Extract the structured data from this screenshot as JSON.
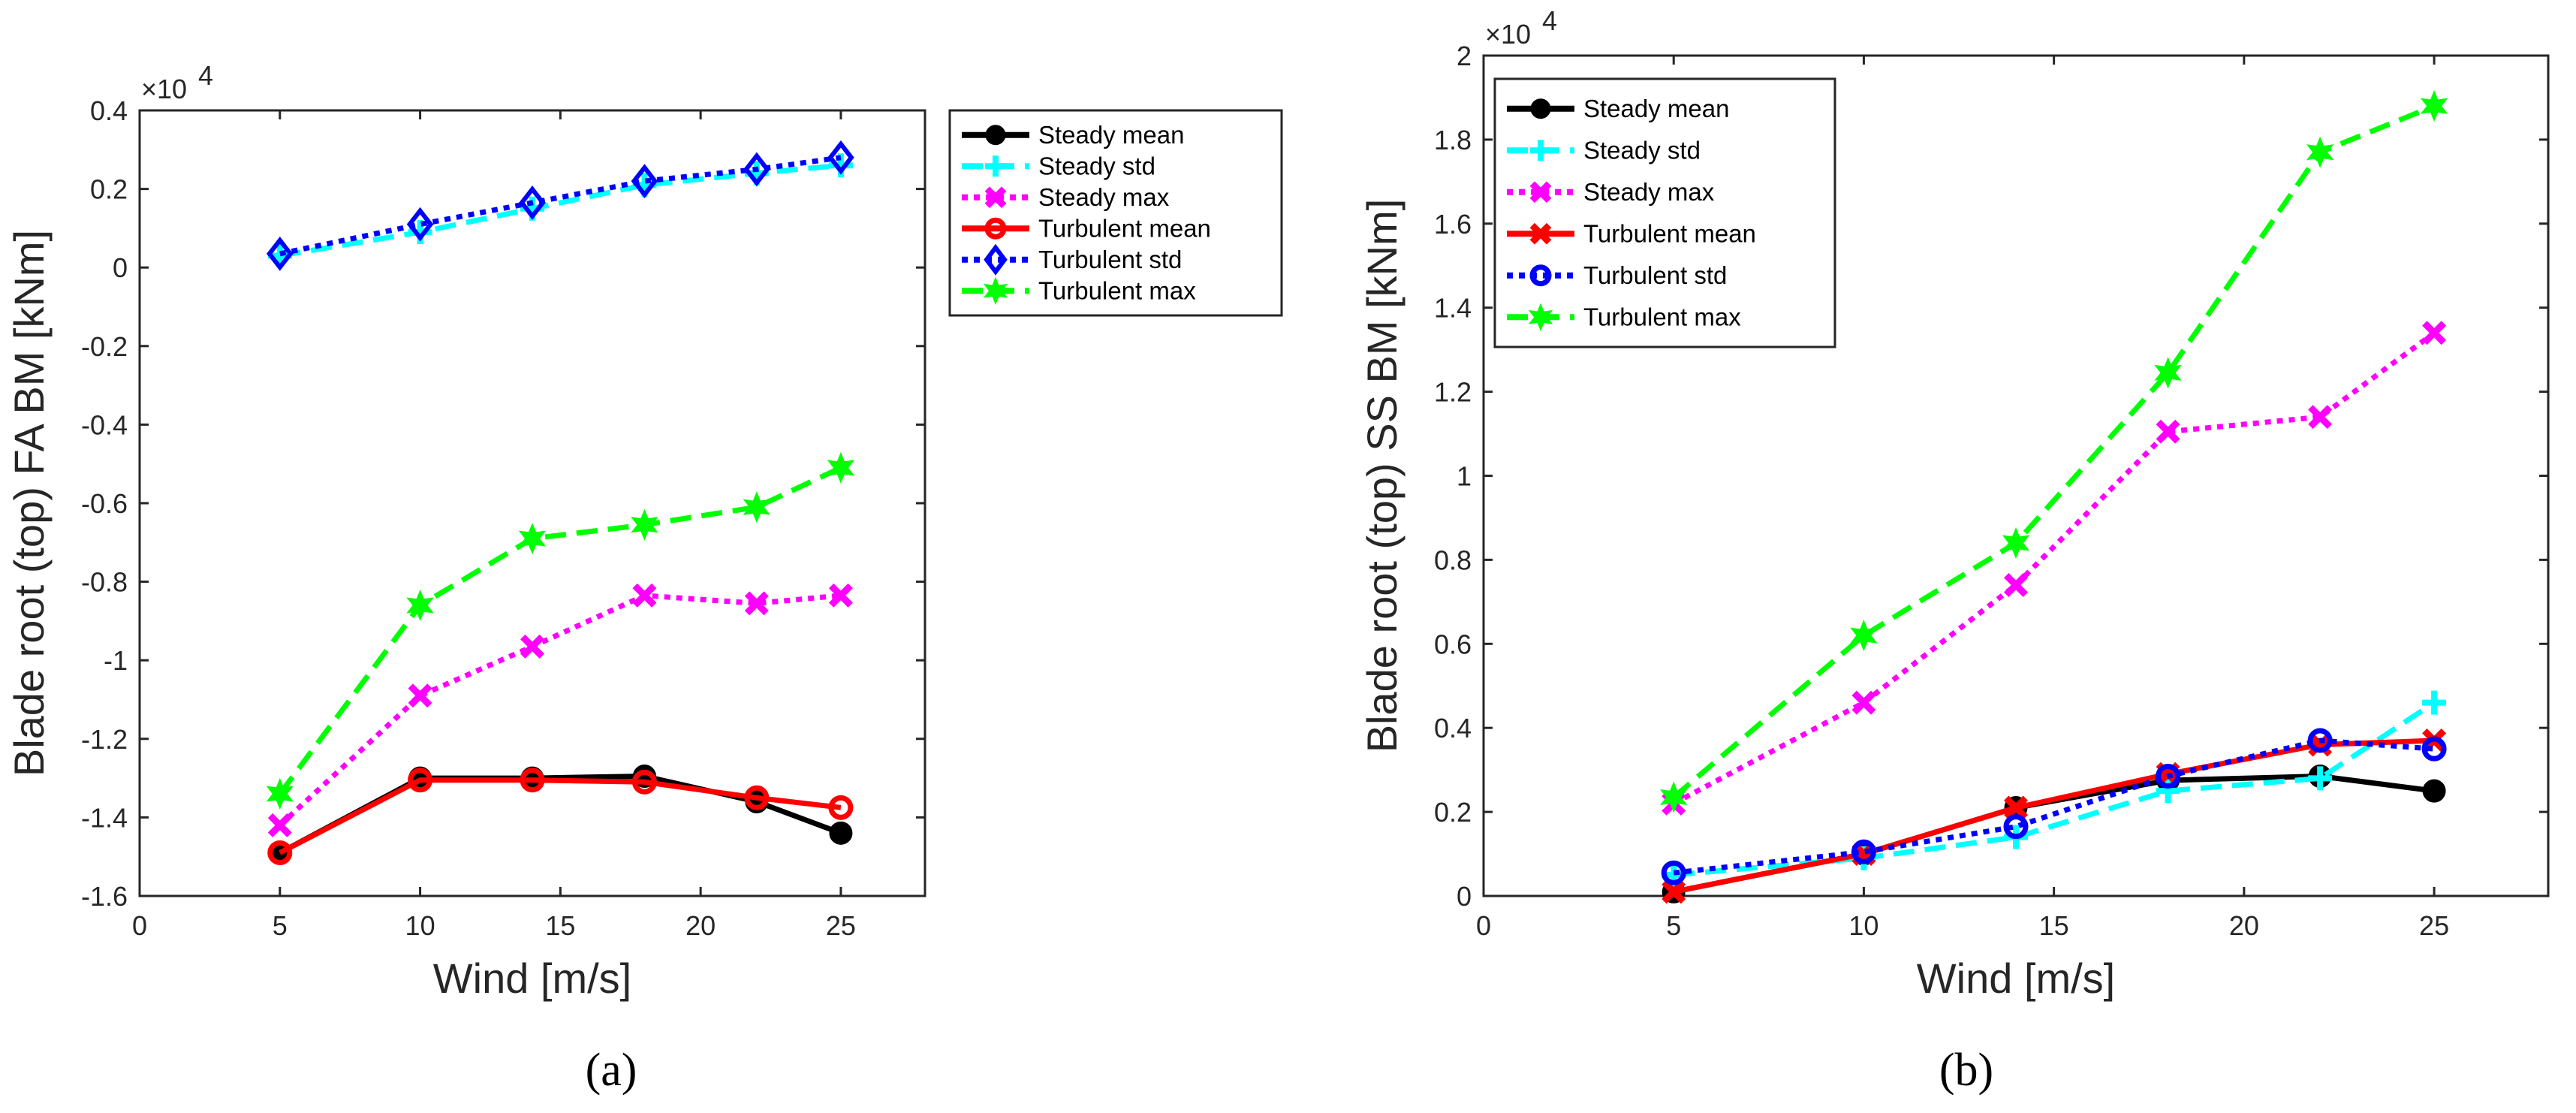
{
  "chart_data": [
    {
      "type": "line",
      "panel_label": "(a)",
      "xlabel": "Wind [m/s]",
      "ylabel": "Blade root (top) FA BM [kNm]",
      "y_multiplier": "×10^4",
      "y_multiplier_base": "×10",
      "y_multiplier_exp": "4",
      "xlim": [
        0,
        28
      ],
      "ylim": [
        -1.6,
        0.4
      ],
      "xticks": [
        "0",
        "5",
        "10",
        "15",
        "20",
        "25"
      ],
      "xtick_values": [
        0,
        5,
        10,
        15,
        20,
        25
      ],
      "yticks": [
        "-1.6",
        "-1.4",
        "-1.2",
        "-1",
        "-0.8",
        "-0.6",
        "-0.4",
        "-0.2",
        "0",
        "0.2",
        "0.4"
      ],
      "ytick_values": [
        -1.6,
        -1.4,
        -1.2,
        -1,
        -0.8,
        -0.6,
        -0.4,
        -0.2,
        0,
        0.2,
        0.4
      ],
      "legend_position": "outside-right-top",
      "grid": false,
      "x": [
        5,
        10,
        14,
        18,
        22,
        25
      ],
      "series": [
        {
          "name": "Steady mean",
          "color": "#000000",
          "style": "solid",
          "marker": "filled-circle",
          "values": [
            -1.49,
            -1.3,
            -1.3,
            -1.295,
            -1.36,
            -1.44
          ]
        },
        {
          "name": "Steady std",
          "color": "#00ffff",
          "style": "dashed",
          "marker": "plus",
          "values": [
            0.03,
            0.09,
            0.15,
            0.21,
            0.24,
            0.26
          ]
        },
        {
          "name": "Steady max",
          "color": "#ff00ff",
          "style": "dotted",
          "marker": "x",
          "values": [
            -1.42,
            -1.09,
            -0.965,
            -0.835,
            -0.855,
            -0.835
          ]
        },
        {
          "name": "Turbulent mean",
          "color": "#ff0000",
          "style": "solid",
          "marker": "circle",
          "values": [
            -1.49,
            -1.305,
            -1.305,
            -1.31,
            -1.35,
            -1.375
          ]
        },
        {
          "name": "Turbulent std",
          "color": "#0000ff",
          "style": "dotted",
          "marker": "diamond",
          "values": [
            0.035,
            0.11,
            0.165,
            0.22,
            0.25,
            0.28
          ]
        },
        {
          "name": "Turbulent max",
          "color": "#00ff00",
          "style": "dashed",
          "marker": "star",
          "values": [
            -1.34,
            -0.86,
            -0.69,
            -0.655,
            -0.61,
            -0.51
          ]
        }
      ]
    },
    {
      "type": "line",
      "panel_label": "(b)",
      "xlabel": "Wind [m/s]",
      "ylabel": "Blade root (top) SS BM [kNm]",
      "y_multiplier": "×10^4",
      "y_multiplier_base": "×10",
      "y_multiplier_exp": "4",
      "xlim": [
        0,
        28
      ],
      "ylim": [
        0,
        2
      ],
      "xticks": [
        "0",
        "5",
        "10",
        "15",
        "20",
        "25"
      ],
      "xtick_values": [
        0,
        5,
        10,
        15,
        20,
        25
      ],
      "yticks": [
        "0",
        "0.2",
        "0.4",
        "0.6",
        "0.8",
        "1",
        "1.2",
        "1.4",
        "1.6",
        "1.8",
        "2"
      ],
      "ytick_values": [
        0,
        0.2,
        0.4,
        0.6,
        0.8,
        1,
        1.2,
        1.4,
        1.6,
        1.8,
        2
      ],
      "legend_position": "top-left",
      "grid": false,
      "x": [
        5,
        10,
        14,
        18,
        22,
        25
      ],
      "series": [
        {
          "name": "Steady mean",
          "color": "#000000",
          "style": "solid",
          "marker": "filled-circle",
          "values": [
            0.01,
            0.1,
            0.21,
            0.275,
            0.285,
            0.25
          ]
        },
        {
          "name": "Steady std",
          "color": "#00ffff",
          "style": "dashed",
          "marker": "plus",
          "values": [
            0.05,
            0.09,
            0.14,
            0.25,
            0.28,
            0.46
          ]
        },
        {
          "name": "Steady max",
          "color": "#ff00ff",
          "style": "dotted",
          "marker": "x",
          "values": [
            0.22,
            0.46,
            0.74,
            1.105,
            1.14,
            1.34
          ]
        },
        {
          "name": "Turbulent mean",
          "color": "#ff0000",
          "style": "solid",
          "marker": "x",
          "values": [
            0.01,
            0.1,
            0.21,
            0.29,
            0.36,
            0.37
          ]
        },
        {
          "name": "Turbulent std",
          "color": "#0000ff",
          "style": "dotted",
          "marker": "circle",
          "values": [
            0.055,
            0.105,
            0.165,
            0.285,
            0.37,
            0.35
          ]
        },
        {
          "name": "Turbulent max",
          "color": "#00ff00",
          "style": "dashed",
          "marker": "star",
          "values": [
            0.235,
            0.62,
            0.84,
            1.245,
            1.77,
            1.88
          ]
        }
      ]
    }
  ]
}
